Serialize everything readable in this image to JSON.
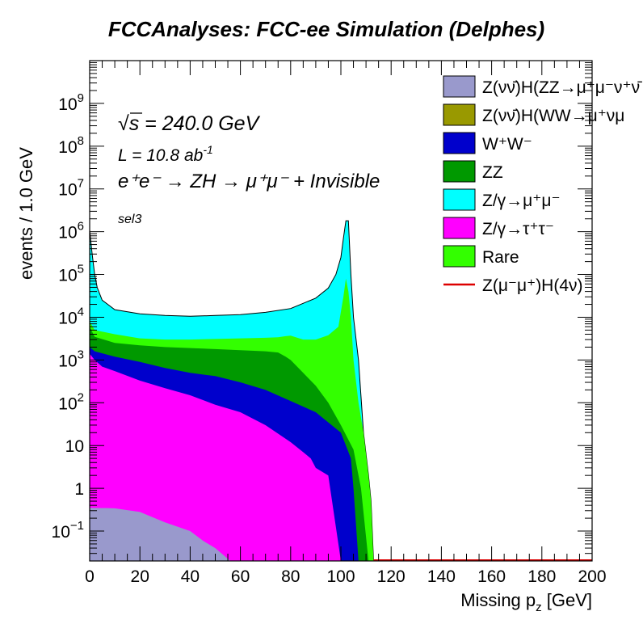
{
  "chart_data": {
    "type": "area",
    "title": "FCCAnalyses: FCC-ee Simulation (Delphes)",
    "xlabel_base": "Missing p",
    "xlabel_sub": "z",
    "xlabel_unit": " [GeV]",
    "ylabel": "events / 1.0 GeV",
    "xlim": [
      0,
      200
    ],
    "ylim": [
      0.02,
      10000000000.0
    ],
    "log_y": true,
    "stacked": true,
    "x_ticks": [
      "0",
      "20",
      "40",
      "60",
      "80",
      "100",
      "120",
      "140",
      "160",
      "180",
      "200"
    ],
    "y_ticks": [
      {
        "v": 0.1,
        "base": "10",
        "exp": "−1"
      },
      {
        "v": 1,
        "base": "1",
        "exp": ""
      },
      {
        "v": 10,
        "base": "10",
        "exp": ""
      },
      {
        "v": 100,
        "base": "10",
        "exp": "2"
      },
      {
        "v": 1000,
        "base": "10",
        "exp": "3"
      },
      {
        "v": 10000,
        "base": "10",
        "exp": "4"
      },
      {
        "v": 100000,
        "base": "10",
        "exp": "5"
      },
      {
        "v": 1000000,
        "base": "10",
        "exp": "6"
      },
      {
        "v": 10000000,
        "base": "10",
        "exp": "7"
      },
      {
        "v": 100000000,
        "base": "10",
        "exp": "8"
      },
      {
        "v": 1000000000,
        "base": "10",
        "exp": "9"
      }
    ],
    "annotations": {
      "sqrt_s": "s = 240.0 GeV",
      "lumi_base": "L = 10.8 ab",
      "lumi_exp": "-1",
      "process": "e⁺e⁻ → ZH → μ⁺μ⁻ + Invisible",
      "selection": "sel3"
    },
    "legend_position": "top-right",
    "legend": [
      {
        "label": "Z(νν̄)H(ZZ→μ⁺μ⁻ν⁺ν̄",
        "color": "#9999cc",
        "type": "fill"
      },
      {
        "label": "Z(νν̄)H(WW→μ⁺νμ",
        "color": "#999900",
        "type": "fill"
      },
      {
        "label": "W⁺W⁻",
        "color": "#0000cc",
        "type": "fill"
      },
      {
        "label": "ZZ",
        "color": "#009900",
        "type": "fill"
      },
      {
        "label": "Z/γ→μ⁺μ⁻",
        "color": "#00ffff",
        "type": "fill"
      },
      {
        "label": "Z/γ→τ⁺τ⁻",
        "color": "#ff00ff",
        "type": "fill"
      },
      {
        "label": "Rare",
        "color": "#33ff00",
        "type": "fill"
      },
      {
        "label": "Z(μ⁻μ⁺)H(4ν)",
        "color": "#dd0000",
        "type": "line"
      }
    ],
    "series": [
      {
        "name": "Z(νν̄)H(ZZ→μ⁺μ⁻ν⁺ν̄",
        "color": "#9999cc",
        "points": [
          [
            0,
            0.35
          ],
          [
            10,
            0.34
          ],
          [
            20,
            0.28
          ],
          [
            30,
            0.16
          ],
          [
            40,
            0.1
          ],
          [
            45,
            0.06
          ],
          [
            50,
            0.04
          ],
          [
            56,
            0.02
          ],
          [
            60,
            0.02
          ],
          [
            200,
            0.02
          ]
        ]
      },
      {
        "name": "Z/γ→τ⁺τ⁻",
        "color": "#ff00ff",
        "points": [
          [
            0,
            1400
          ],
          [
            2,
            1000
          ],
          [
            5,
            700
          ],
          [
            10,
            550
          ],
          [
            20,
            330
          ],
          [
            30,
            220
          ],
          [
            40,
            150
          ],
          [
            50,
            90
          ],
          [
            60,
            60
          ],
          [
            70,
            30
          ],
          [
            80,
            12
          ],
          [
            85,
            7
          ],
          [
            88,
            5
          ],
          [
            90,
            3
          ],
          [
            95,
            2
          ],
          [
            100,
            0.02
          ],
          [
            200,
            0.02
          ]
        ]
      },
      {
        "name": "W⁺W⁻",
        "color": "#0000cc",
        "points": [
          [
            0,
            2000
          ],
          [
            2,
            1600
          ],
          [
            10,
            1200
          ],
          [
            20,
            900
          ],
          [
            30,
            650
          ],
          [
            40,
            500
          ],
          [
            50,
            420
          ],
          [
            60,
            300
          ],
          [
            70,
            200
          ],
          [
            80,
            110
          ],
          [
            90,
            60
          ],
          [
            100,
            20
          ],
          [
            104,
            5
          ],
          [
            105,
            1
          ],
          [
            107,
            0.02
          ],
          [
            200,
            0.02
          ]
        ]
      },
      {
        "name": "ZZ",
        "color": "#009900",
        "points": [
          [
            0,
            6000
          ],
          [
            2,
            3500
          ],
          [
            10,
            2500
          ],
          [
            20,
            2200
          ],
          [
            30,
            2000
          ],
          [
            40,
            1900
          ],
          [
            50,
            1800
          ],
          [
            60,
            1700
          ],
          [
            70,
            1600
          ],
          [
            75,
            1500
          ],
          [
            78,
            1200
          ],
          [
            80,
            1000
          ],
          [
            85,
            500
          ],
          [
            90,
            250
          ],
          [
            95,
            100
          ],
          [
            100,
            30
          ],
          [
            105,
            8
          ],
          [
            108,
            1
          ],
          [
            111,
            0.02
          ],
          [
            200,
            0.02
          ]
        ]
      },
      {
        "name": "Rare",
        "color": "#33ff00",
        "points": [
          [
            0,
            8000
          ],
          [
            2,
            5000
          ],
          [
            10,
            4000
          ],
          [
            20,
            3200
          ],
          [
            30,
            3000
          ],
          [
            40,
            3000
          ],
          [
            50,
            3100
          ],
          [
            60,
            3200
          ],
          [
            70,
            3300
          ],
          [
            75,
            3400
          ],
          [
            78,
            3600
          ],
          [
            80,
            3700
          ],
          [
            85,
            3000
          ],
          [
            90,
            3000
          ],
          [
            95,
            3800
          ],
          [
            99,
            6000
          ],
          [
            101,
            30000
          ],
          [
            102,
            80000
          ],
          [
            103,
            40000
          ],
          [
            104,
            10000
          ],
          [
            105,
            1000
          ],
          [
            107,
            100
          ],
          [
            109,
            20
          ],
          [
            111,
            2
          ],
          [
            112,
            0.5
          ],
          [
            113,
            0.02
          ],
          [
            200,
            0.02
          ]
        ]
      },
      {
        "name": "Z/γ→μ⁺μ⁻",
        "color": "#00ffff",
        "points": [
          [
            0,
            1100000
          ],
          [
            1,
            300000
          ],
          [
            2,
            100000
          ],
          [
            3,
            50000
          ],
          [
            5,
            25000
          ],
          [
            10,
            15000
          ],
          [
            20,
            12000
          ],
          [
            30,
            11000
          ],
          [
            40,
            10500
          ],
          [
            50,
            11000
          ],
          [
            60,
            11500
          ],
          [
            70,
            13000
          ],
          [
            80,
            16000
          ],
          [
            90,
            28000
          ],
          [
            95,
            48000
          ],
          [
            98,
            100000
          ],
          [
            100,
            250000
          ],
          [
            101,
            700000
          ],
          [
            102,
            1800000
          ],
          [
            103,
            1800000
          ],
          [
            104,
            100000
          ],
          [
            105,
            10000
          ],
          [
            107,
            1000
          ],
          [
            109,
            20
          ],
          [
            111,
            2
          ],
          [
            112,
            0.5
          ],
          [
            113,
            0.02
          ],
          [
            200,
            0.02
          ]
        ]
      }
    ],
    "signal": {
      "name": "Z(μ⁻μ⁺)H(4ν)",
      "color": "#dd0000",
      "level": 0.02,
      "xrange": [
        113,
        200
      ]
    }
  }
}
